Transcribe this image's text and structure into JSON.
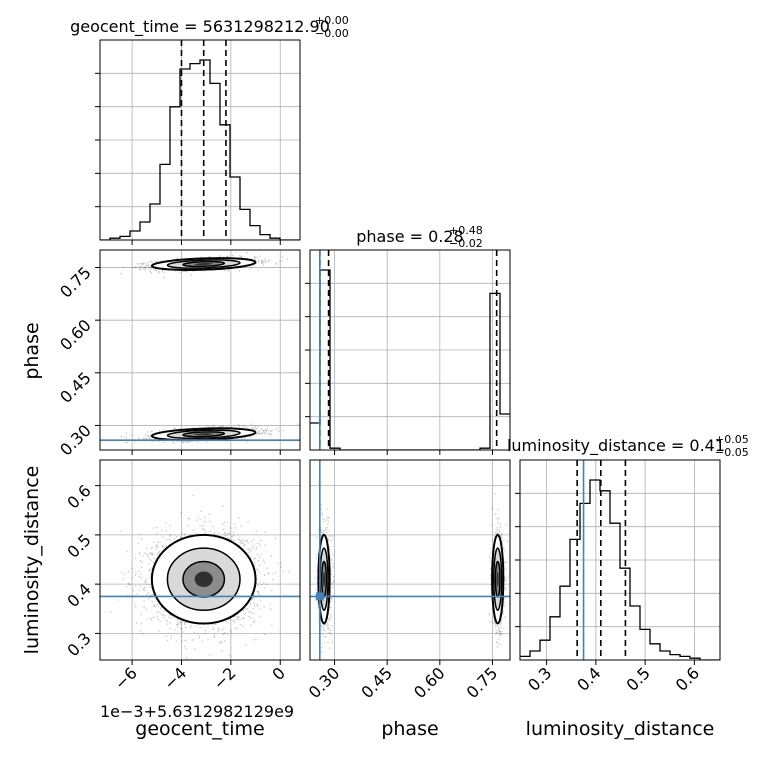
{
  "chart_data": {
    "type": "corner",
    "parameters": [
      "geocent_time",
      "phase",
      "luminosity_distance"
    ],
    "axis_labels": {
      "geocent_time": "geocent_time",
      "phase": "phase",
      "luminosity_distance": "luminosity_distance"
    },
    "offset_label": "1e−3+5.6312982129e9",
    "titles": {
      "geocent_time": {
        "prefix": "geocent_time = 5631298212.90",
        "sup": "+0.00",
        "sub": "−0.00"
      },
      "phase": {
        "prefix": "phase = 0.28",
        "sup": "+0.48",
        "sub": "−0.02"
      },
      "luminosity_distance": {
        "prefix": "luminosity_distance = 0.41",
        "sup": "+0.05",
        "sub": "−0.05"
      }
    },
    "ranges": {
      "geocent_time": [
        -7.3,
        0.8
      ],
      "phase": [
        0.23,
        0.8
      ],
      "luminosity_distance": [
        0.246,
        0.652
      ]
    },
    "ticks": {
      "geocent_time": {
        "values": [
          -6,
          -4,
          -2,
          0
        ],
        "labels": [
          "−6",
          "−4",
          "−2",
          "0"
        ]
      },
      "phase": {
        "values": [
          0.3,
          0.45,
          0.6,
          0.75
        ],
        "labels": [
          "0.30",
          "0.45",
          "0.60",
          "0.75"
        ]
      },
      "luminosity_distance": {
        "values": [
          0.3,
          0.4,
          0.5,
          0.6
        ],
        "labels": [
          "0.3",
          "0.4",
          "0.5",
          "0.6"
        ]
      }
    },
    "truths": {
      "phase": 0.258,
      "luminosity_distance": 0.375
    },
    "quantiles": {
      "geocent_time": [
        -4.0,
        -3.1,
        -2.2
      ],
      "phase": [
        0.258,
        0.283,
        0.762
      ],
      "luminosity_distance": [
        0.362,
        0.41,
        0.46
      ]
    },
    "histograms": {
      "geocent_time": {
        "bin_edges": [
          -7.3,
          -6.895,
          -6.49,
          -6.085,
          -5.68,
          -5.275,
          -4.87,
          -4.465,
          -4.06,
          -3.655,
          -3.25,
          -2.845,
          -2.44,
          -2.035,
          -1.63,
          -1.225,
          -0.82,
          -0.415,
          -0.01,
          0.395,
          0.8
        ],
        "counts": [
          0,
          0.01,
          0.02,
          0.05,
          0.1,
          0.2,
          0.42,
          0.74,
          0.95,
          0.98,
          1.0,
          0.87,
          0.64,
          0.35,
          0.17,
          0.08,
          0.03,
          0.01,
          0.0,
          0
        ]
      },
      "phase": {
        "bin_edges": [
          0.23,
          0.2585,
          0.287,
          0.3155,
          0.344,
          0.3725,
          0.401,
          0.4295,
          0.458,
          0.4865,
          0.515,
          0.5435,
          0.572,
          0.6005,
          0.629,
          0.6575,
          0.686,
          0.7145,
          0.743,
          0.7715,
          0.8
        ],
        "counts": [
          0.15,
          1.0,
          0.01,
          0,
          0,
          0,
          0,
          0,
          0,
          0,
          0,
          0,
          0,
          0,
          0,
          0,
          0,
          0.01,
          0.87,
          0.2
        ]
      },
      "luminosity_distance": {
        "bin_edges": [
          0.246,
          0.2663,
          0.2866,
          0.3069,
          0.3272,
          0.3475,
          0.3678,
          0.3881,
          0.4084,
          0.4287,
          0.449,
          0.4693,
          0.4896,
          0.5099,
          0.5302,
          0.5505,
          0.5708,
          0.5911,
          0.6114,
          0.6317,
          0.652
        ],
        "counts": [
          0.02,
          0.05,
          0.11,
          0.24,
          0.41,
          0.67,
          0.87,
          1.0,
          0.94,
          0.76,
          0.51,
          0.3,
          0.17,
          0.09,
          0.05,
          0.03,
          0.02,
          0.01,
          0,
          0
        ]
      }
    },
    "grid": true,
    "colors": {
      "line": "#000000",
      "truth": "#4682b4",
      "grid": "#b0b0b0"
    }
  }
}
